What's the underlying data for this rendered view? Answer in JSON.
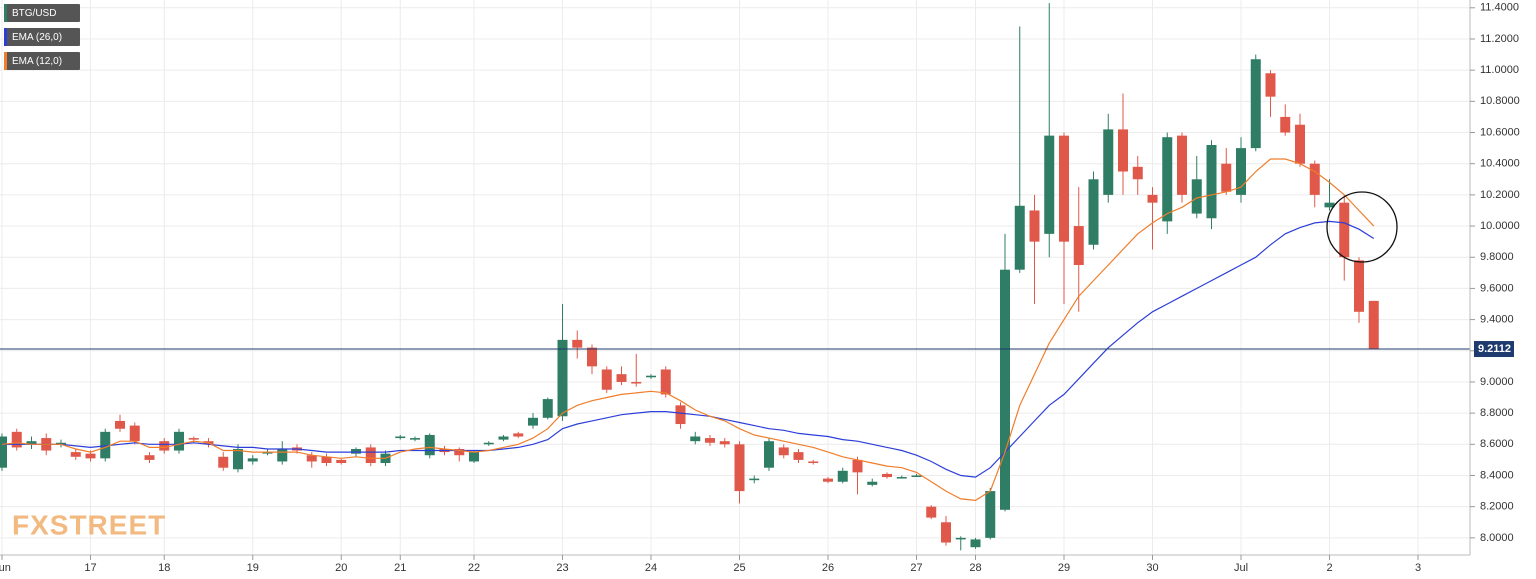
{
  "chart_data": {
    "type": "candlestick",
    "watermark": "FXSTREET",
    "categories": [
      "Jun",
      null,
      null,
      null,
      null,
      null,
      "17",
      null,
      null,
      null,
      null,
      "18",
      null,
      null,
      null,
      null,
      null,
      "19",
      null,
      null,
      null,
      null,
      null,
      "20",
      null,
      null,
      null,
      "21",
      null,
      null,
      null,
      null,
      "22",
      null,
      null,
      null,
      null,
      null,
      "23",
      null,
      null,
      null,
      null,
      null,
      "24",
      null,
      null,
      null,
      null,
      null,
      "25",
      null,
      null,
      null,
      null,
      null,
      "26",
      null,
      null,
      null,
      null,
      null,
      "27",
      null,
      null,
      null,
      "28",
      null,
      null,
      null,
      null,
      null,
      "29",
      null,
      null,
      null,
      null,
      null,
      "30",
      null,
      null,
      null,
      null,
      null,
      "Jul",
      null,
      null,
      null,
      null,
      null,
      "2",
      null,
      null,
      null,
      null,
      null,
      "3"
    ],
    "candles": {
      "name": "BTG/USD",
      "up_color": "#2e7d64",
      "down_color": "#e0584a",
      "open": [
        8.45,
        8.68,
        8.6,
        8.64,
        8.6,
        8.55,
        8.54,
        8.51,
        8.75,
        8.72,
        8.53,
        8.62,
        8.56,
        8.64,
        8.62,
        8.52,
        8.44,
        8.49,
        8.55,
        8.49,
        8.58,
        8.53,
        8.52,
        8.5,
        8.54,
        8.58,
        8.48,
        8.64,
        8.63,
        8.53,
        8.57,
        8.57,
        8.49,
        8.6,
        8.63,
        8.67,
        8.72,
        8.77,
        8.78,
        9.27,
        9.22,
        9.08,
        9.05,
        9.0,
        9.03,
        9.08,
        8.85,
        8.62,
        8.64,
        8.62,
        8.6,
        8.37,
        8.45,
        8.58,
        8.55,
        8.49,
        8.38,
        8.36,
        8.5,
        8.34,
        8.41,
        8.39,
        8.4,
        8.2,
        8.1,
        7.99,
        7.94,
        8.0,
        8.18,
        9.72,
        10.1,
        9.95,
        10.58,
        10.0,
        9.88,
        10.2,
        10.62,
        10.38,
        10.2,
        10.03,
        10.58,
        10.08,
        10.05,
        10.4,
        10.2,
        10.5,
        10.98,
        10.7,
        10.65,
        10.4,
        10.12,
        10.15,
        9.78,
        9.52,
        null,
        null,
        null
      ],
      "high": [
        8.67,
        8.7,
        8.65,
        8.67,
        8.63,
        8.57,
        8.56,
        8.7,
        8.79,
        8.74,
        8.55,
        8.64,
        8.7,
        8.65,
        8.64,
        8.55,
        8.6,
        8.53,
        8.57,
        8.62,
        8.6,
        8.55,
        8.54,
        8.51,
        8.58,
        8.6,
        8.56,
        8.66,
        8.65,
        8.67,
        8.59,
        8.58,
        8.56,
        8.62,
        8.66,
        8.68,
        8.8,
        8.9,
        9.5,
        9.33,
        9.24,
        9.1,
        9.1,
        9.18,
        9.05,
        9.1,
        8.87,
        8.68,
        8.66,
        8.64,
        8.62,
        8.4,
        8.64,
        8.6,
        8.57,
        8.5,
        8.39,
        8.45,
        8.52,
        8.38,
        8.42,
        8.4,
        8.41,
        8.21,
        8.14,
        8.01,
        8.0,
        8.32,
        9.95,
        11.28,
        10.2,
        11.43,
        10.6,
        10.25,
        10.35,
        10.72,
        10.85,
        10.45,
        10.25,
        10.6,
        10.6,
        10.45,
        10.55,
        10.5,
        10.57,
        11.1,
        11.0,
        10.78,
        10.72,
        10.42,
        10.3,
        10.2,
        9.8,
        9.52,
        null,
        null,
        null
      ],
      "low": [
        8.43,
        8.56,
        8.57,
        8.53,
        8.58,
        8.5,
        8.49,
        8.49,
        8.68,
        8.6,
        8.48,
        8.54,
        8.54,
        8.61,
        8.58,
        8.43,
        8.42,
        8.47,
        8.53,
        8.47,
        8.54,
        8.45,
        8.46,
        8.47,
        8.52,
        8.46,
        8.46,
        8.63,
        8.62,
        8.51,
        8.53,
        8.49,
        8.48,
        8.59,
        8.62,
        8.64,
        8.7,
        8.76,
        8.75,
        9.15,
        9.05,
        8.93,
        8.98,
        8.97,
        9.02,
        8.9,
        8.7,
        8.6,
        8.59,
        8.58,
        8.22,
        8.35,
        8.43,
        8.51,
        8.48,
        8.47,
        8.35,
        8.35,
        8.28,
        8.33,
        8.38,
        8.38,
        8.39,
        8.12,
        7.95,
        7.92,
        7.93,
        7.99,
        8.17,
        9.7,
        9.5,
        9.8,
        9.5,
        9.45,
        9.85,
        10.15,
        10.2,
        10.2,
        9.85,
        9.95,
        10.15,
        10.05,
        9.98,
        10.2,
        10.15,
        10.48,
        10.7,
        10.58,
        10.38,
        10.12,
        10.1,
        9.65,
        9.38,
        9.21,
        null,
        null,
        null
      ],
      "close": [
        8.65,
        8.58,
        8.62,
        8.56,
        8.61,
        8.52,
        8.51,
        8.68,
        8.7,
        8.62,
        8.5,
        8.56,
        8.68,
        8.63,
        8.6,
        8.45,
        8.57,
        8.51,
        8.55,
        8.57,
        8.56,
        8.49,
        8.48,
        8.48,
        8.57,
        8.48,
        8.54,
        8.65,
        8.64,
        8.66,
        8.55,
        8.53,
        8.55,
        8.61,
        8.65,
        8.65,
        8.77,
        8.89,
        9.27,
        9.22,
        9.1,
        8.95,
        9.0,
        8.99,
        9.04,
        8.92,
        8.73,
        8.65,
        8.61,
        8.6,
        8.3,
        8.38,
        8.62,
        8.53,
        8.5,
        8.48,
        8.36,
        8.43,
        8.42,
        8.36,
        8.39,
        8.39,
        8.4,
        8.13,
        7.97,
        8.0,
        7.99,
        8.3,
        9.72,
        10.13,
        9.9,
        10.58,
        9.9,
        9.75,
        10.3,
        10.62,
        10.35,
        10.3,
        10.15,
        10.57,
        10.2,
        10.3,
        10.52,
        10.22,
        10.5,
        11.07,
        10.83,
        10.6,
        10.4,
        10.2,
        10.15,
        9.8,
        9.45,
        9.21,
        null,
        null,
        null
      ]
    },
    "series": [
      {
        "name": "EMA (26,0)",
        "color": "#2c3ed8",
        "values": [
          8.6,
          8.6,
          8.6,
          8.6,
          8.6,
          8.59,
          8.58,
          8.59,
          8.6,
          8.61,
          8.6,
          8.6,
          8.6,
          8.61,
          8.6,
          8.59,
          8.58,
          8.58,
          8.57,
          8.57,
          8.57,
          8.56,
          8.55,
          8.55,
          8.55,
          8.55,
          8.55,
          8.56,
          8.56,
          8.56,
          8.56,
          8.56,
          8.56,
          8.56,
          8.57,
          8.58,
          8.6,
          8.63,
          8.7,
          8.73,
          8.75,
          8.77,
          8.79,
          8.8,
          8.81,
          8.81,
          8.8,
          8.79,
          8.78,
          8.76,
          8.74,
          8.72,
          8.7,
          8.69,
          8.67,
          8.66,
          8.65,
          8.63,
          8.62,
          8.6,
          8.58,
          8.56,
          8.53,
          8.49,
          8.44,
          8.4,
          8.39,
          8.45,
          8.55,
          8.65,
          8.75,
          8.85,
          8.92,
          9.02,
          9.12,
          9.22,
          9.3,
          9.38,
          9.45,
          9.5,
          9.55,
          9.6,
          9.65,
          9.7,
          9.75,
          9.8,
          9.88,
          9.95,
          9.99,
          10.02,
          10.03,
          10.02,
          9.98,
          9.92,
          null,
          null,
          null
        ]
      },
      {
        "name": "EMA (12,0)",
        "color": "#f07d2a",
        "values": [
          8.6,
          8.61,
          8.6,
          8.6,
          8.6,
          8.57,
          8.55,
          8.58,
          8.62,
          8.62,
          8.58,
          8.58,
          8.6,
          8.62,
          8.61,
          8.56,
          8.56,
          8.55,
          8.55,
          8.55,
          8.55,
          8.53,
          8.52,
          8.51,
          8.52,
          8.51,
          8.51,
          8.55,
          8.57,
          8.58,
          8.57,
          8.56,
          8.55,
          8.56,
          8.58,
          8.6,
          8.64,
          8.7,
          8.8,
          8.85,
          8.88,
          8.9,
          8.92,
          8.93,
          8.94,
          8.93,
          8.88,
          8.82,
          8.78,
          8.75,
          8.7,
          8.66,
          8.64,
          8.62,
          8.6,
          8.58,
          8.55,
          8.52,
          8.5,
          8.48,
          8.46,
          8.45,
          8.42,
          8.36,
          8.3,
          8.25,
          8.24,
          8.3,
          8.55,
          8.85,
          9.05,
          9.25,
          9.4,
          9.55,
          9.65,
          9.75,
          9.85,
          9.95,
          10.02,
          10.08,
          10.12,
          10.18,
          10.2,
          10.22,
          10.25,
          10.35,
          10.43,
          10.43,
          10.4,
          10.35,
          10.28,
          10.2,
          10.1,
          10.0,
          null,
          null,
          null
        ]
      }
    ],
    "last_price": 9.2112,
    "ylim": [
      7.89,
      11.45
    ],
    "yticks": [
      {
        "value": 8.0,
        "label": "8.0000"
      },
      {
        "value": 8.2,
        "label": "8.2000"
      },
      {
        "value": 8.4,
        "label": "8.4000"
      },
      {
        "value": 8.6,
        "label": "8.6000"
      },
      {
        "value": 8.8,
        "label": "8.8000"
      },
      {
        "value": 9.0,
        "label": "9.0000"
      },
      {
        "value": 9.2,
        "label": "9.2000"
      },
      {
        "value": 9.4,
        "label": "9.4000"
      },
      {
        "value": 9.6,
        "label": "9.6000"
      },
      {
        "value": 9.8,
        "label": "9.8000"
      },
      {
        "value": 10.0,
        "label": "10.0000"
      },
      {
        "value": 10.2,
        "label": "10.2000"
      },
      {
        "value": 10.4,
        "label": "10.4000"
      },
      {
        "value": 10.6,
        "label": "10.6000"
      },
      {
        "value": 10.8,
        "label": "10.8000"
      },
      {
        "value": 11.0,
        "label": "11.0000"
      },
      {
        "value": 11.2,
        "label": "11.2000"
      },
      {
        "value": 11.4,
        "label": "11.4000"
      }
    ],
    "grid": true
  }
}
